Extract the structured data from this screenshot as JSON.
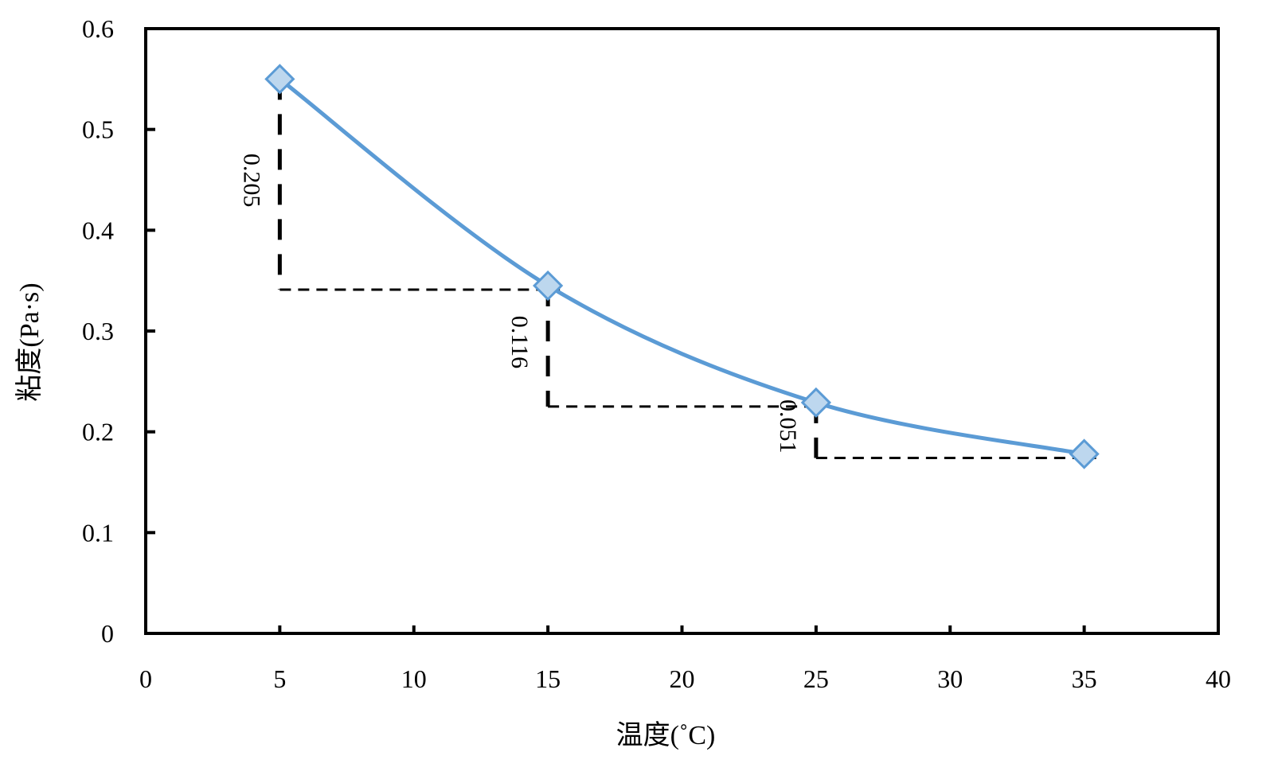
{
  "chart_data": {
    "type": "line",
    "title": "",
    "xlabel": "温度(˚C)",
    "ylabel": "粘度(Pa·s)",
    "xlim": [
      0,
      40
    ],
    "ylim": [
      0,
      0.6
    ],
    "xticks": [
      "0",
      "5",
      "10",
      "15",
      "20",
      "25",
      "30",
      "35",
      "40"
    ],
    "yticks": [
      "0",
      "0.1",
      "0.2",
      "0.3",
      "0.4",
      "0.5",
      "0.6"
    ],
    "grid": false,
    "series": [
      {
        "name": "粘度",
        "x": [
          5,
          15,
          25,
          35
        ],
        "y": [
          0.55,
          0.345,
          0.229,
          0.178
        ],
        "color": "#5b9bd5",
        "marker_fill": "#bdd7ee"
      }
    ],
    "annotations": [
      {
        "text": "0.205",
        "x_from": 5,
        "x_to": 15,
        "y_top": 0.55,
        "y_bottom": 0.345
      },
      {
        "text": "0.116",
        "x_from": 15,
        "x_to": 25,
        "y_top": 0.345,
        "y_bottom": 0.229
      },
      {
        "text": "0.051",
        "x_from": 25,
        "x_to": 35,
        "y_top": 0.229,
        "y_bottom": 0.178
      }
    ]
  }
}
